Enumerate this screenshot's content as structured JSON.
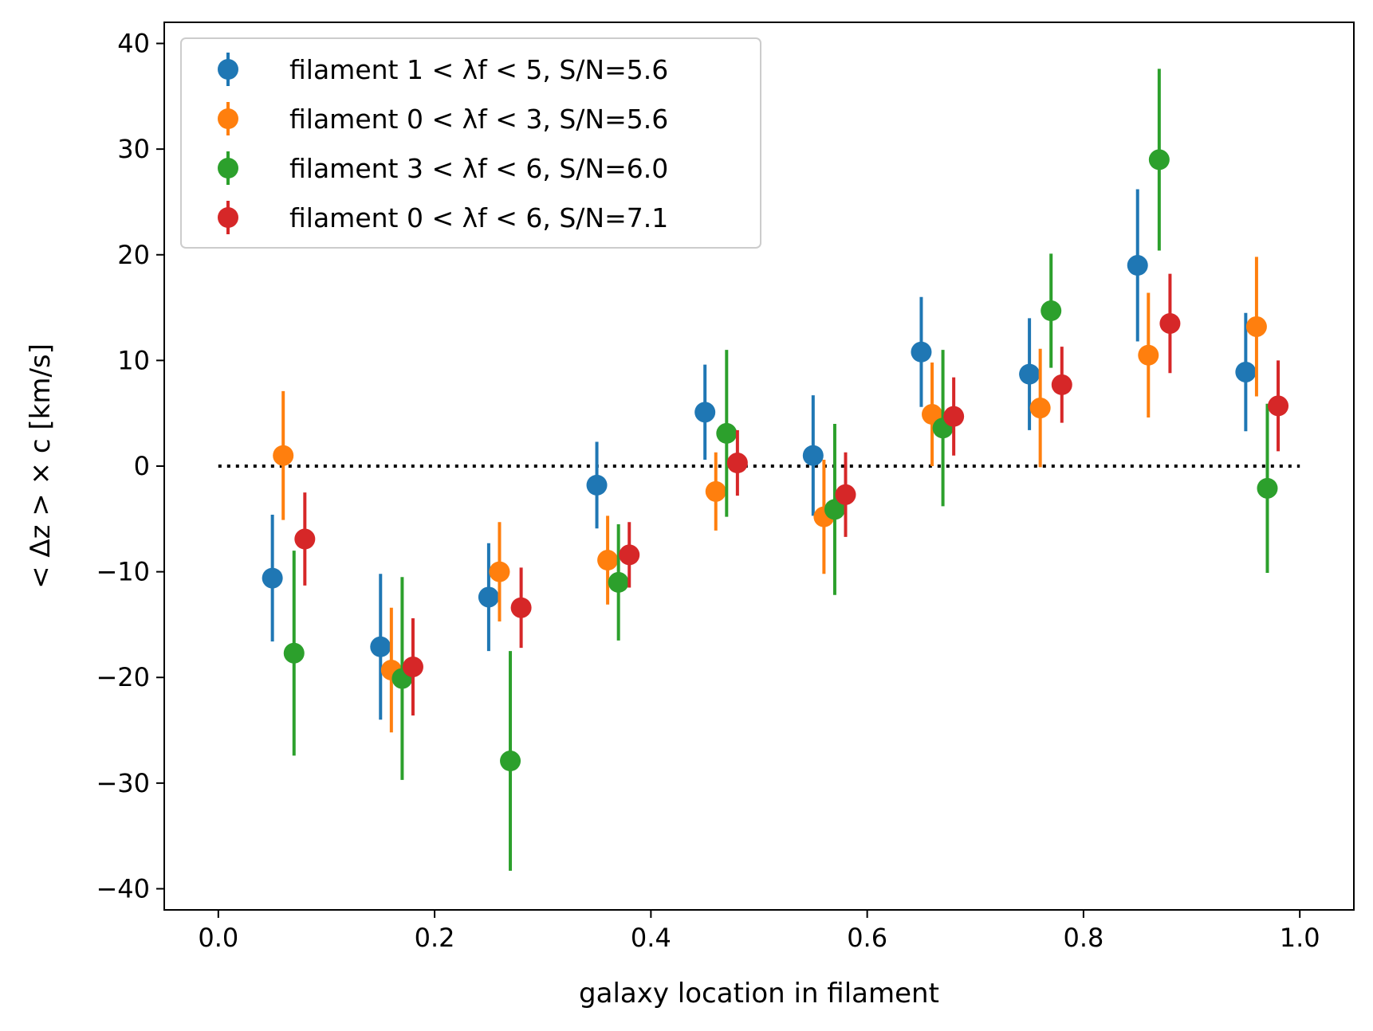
{
  "chart_data": {
    "type": "scatter",
    "title": "",
    "xlabel": "galaxy location in filament",
    "ylabel": "< Δz > × c [km/s]",
    "xlim": [
      -0.05,
      1.05
    ],
    "ylim": [
      -42,
      42
    ],
    "xticks": [
      0.0,
      0.2,
      0.4,
      0.6,
      0.8,
      1.0
    ],
    "xtick_labels": [
      "0.0",
      "0.2",
      "0.4",
      "0.6",
      "0.8",
      "1.0"
    ],
    "yticks": [
      -40,
      -30,
      -20,
      -10,
      0,
      10,
      20,
      30,
      40
    ],
    "ytick_labels": [
      "−40",
      "−30",
      "−20",
      "−10",
      "0",
      "10",
      "20",
      "30",
      "40"
    ],
    "grid": false,
    "legend_position": "upper-left",
    "reference_line": {
      "y": 0,
      "style": "dotted",
      "color": "#000000"
    },
    "series": [
      {
        "name": "filament 1 < λf < 5, S/N=5.6",
        "color": "#1f77b4",
        "x": [
          0.05,
          0.15,
          0.25,
          0.35,
          0.45,
          0.55,
          0.65,
          0.75,
          0.85,
          0.95
        ],
        "y": [
          -10.6,
          -17.1,
          -12.4,
          -1.8,
          5.1,
          1.0,
          10.8,
          8.7,
          19.0,
          8.9
        ],
        "yerr": [
          6.0,
          6.9,
          5.1,
          4.1,
          4.5,
          5.7,
          5.2,
          5.3,
          7.2,
          5.6
        ]
      },
      {
        "name": "filament 0 < λf < 3, S/N=5.6",
        "color": "#ff7f0e",
        "x": [
          0.06,
          0.16,
          0.26,
          0.36,
          0.46,
          0.56,
          0.66,
          0.76,
          0.86,
          0.96
        ],
        "y": [
          1.0,
          -19.3,
          -10.0,
          -8.9,
          -2.4,
          -4.8,
          4.9,
          5.5,
          10.5,
          13.2
        ],
        "yerr": [
          6.1,
          5.9,
          4.7,
          4.2,
          3.7,
          5.4,
          4.9,
          5.6,
          5.9,
          6.6
        ]
      },
      {
        "name": "filament 3 < λf < 6, S/N=6.0",
        "color": "#2ca02c",
        "x": [
          0.07,
          0.17,
          0.27,
          0.37,
          0.47,
          0.57,
          0.67,
          0.77,
          0.87,
          0.97
        ],
        "y": [
          -17.7,
          -20.1,
          -27.9,
          -11.0,
          3.1,
          -4.1,
          3.6,
          14.7,
          29.0,
          -2.1
        ],
        "yerr": [
          9.7,
          9.6,
          10.4,
          5.5,
          7.9,
          8.1,
          7.4,
          5.4,
          8.6,
          8.0
        ]
      },
      {
        "name": "filament 0 < λf < 6, S/N=7.1",
        "color": "#d62728",
        "x": [
          0.08,
          0.18,
          0.28,
          0.38,
          0.48,
          0.58,
          0.68,
          0.78,
          0.88,
          0.98
        ],
        "y": [
          -6.9,
          -19.0,
          -13.4,
          -8.4,
          0.3,
          -2.7,
          4.7,
          7.7,
          13.5,
          5.7
        ],
        "yerr": [
          4.4,
          4.6,
          3.8,
          3.1,
          3.1,
          4.0,
          3.7,
          3.6,
          4.7,
          4.3
        ]
      }
    ]
  }
}
